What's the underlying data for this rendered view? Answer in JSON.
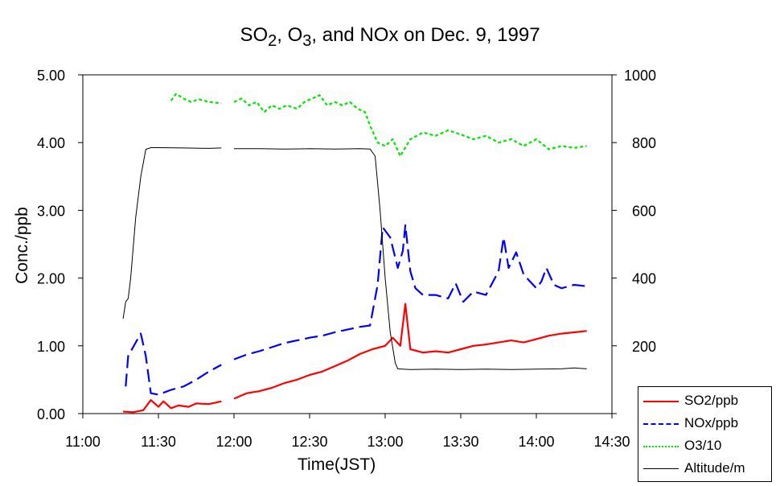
{
  "title_parts": {
    "a": "SO",
    "a_sub": "2",
    "b": ", O",
    "b_sub": "3",
    "c": ", and NOx on Dec. 9, 1997"
  },
  "chart_data": {
    "type": "line",
    "title": "SO2, O3, and NOx on Dec. 9, 1997",
    "xlabel": "Time(JST)",
    "ylabel": "Conc./ppb",
    "x_ticks": [
      "11:00",
      "11:30",
      "12:00",
      "12:30",
      "13:00",
      "13:30",
      "14:00",
      "14:30"
    ],
    "xlim": [
      "11:00",
      "14:30"
    ],
    "y_left_ticks": [
      "0.00",
      "1.00",
      "2.00",
      "3.00",
      "4.00",
      "5.00"
    ],
    "ylim_left": [
      0,
      5
    ],
    "y_right_ticks": [
      "0",
      "200",
      "400",
      "600",
      "800",
      "1000"
    ],
    "ylim_right": [
      0,
      1000
    ],
    "legend_position": "bottom-right",
    "series": [
      {
        "name": "SO2/ppb",
        "color": "#ff0000",
        "axis": "left",
        "style": "solid",
        "points": [
          [
            "11:16",
            0.03
          ],
          [
            "11:20",
            0.02
          ],
          [
            "11:24",
            0.05
          ],
          [
            "11:27",
            0.2
          ],
          [
            "11:30",
            0.1
          ],
          [
            "11:32",
            0.18
          ],
          [
            "11:35",
            0.08
          ],
          [
            "11:38",
            0.12
          ],
          [
            "11:42",
            0.1
          ],
          [
            "11:45",
            0.15
          ],
          [
            "11:50",
            0.14
          ],
          [
            "11:55",
            0.18
          ],
          null,
          [
            "12:00",
            0.22
          ],
          [
            "12:05",
            0.3
          ],
          [
            "12:10",
            0.33
          ],
          [
            "12:15",
            0.38
          ],
          [
            "12:20",
            0.45
          ],
          [
            "12:25",
            0.5
          ],
          [
            "12:30",
            0.57
          ],
          [
            "12:35",
            0.62
          ],
          [
            "12:40",
            0.7
          ],
          [
            "12:45",
            0.78
          ],
          [
            "12:50",
            0.88
          ],
          [
            "12:55",
            0.95
          ],
          [
            "13:00",
            1.0
          ],
          [
            "13:03",
            1.12
          ],
          [
            "13:06",
            1.0
          ],
          [
            "13:08",
            1.62
          ],
          [
            "13:10",
            0.95
          ],
          [
            "13:15",
            0.9
          ],
          [
            "13:20",
            0.92
          ],
          [
            "13:25",
            0.9
          ],
          [
            "13:30",
            0.95
          ],
          [
            "13:35",
            1.0
          ],
          [
            "13:40",
            1.02
          ],
          [
            "13:45",
            1.05
          ],
          [
            "13:50",
            1.08
          ],
          [
            "13:55",
            1.05
          ],
          [
            "14:00",
            1.1
          ],
          [
            "14:05",
            1.15
          ],
          [
            "14:10",
            1.18
          ],
          [
            "14:15",
            1.2
          ],
          [
            "14:20",
            1.22
          ]
        ]
      },
      {
        "name": "NOx/ppb",
        "color": "#0000ff",
        "axis": "left",
        "style": "dashed",
        "points": [
          [
            "11:17",
            0.4
          ],
          [
            "11:18",
            0.85
          ],
          [
            "11:21",
            1.05
          ],
          [
            "11:23",
            1.18
          ],
          [
            "11:25",
            0.85
          ],
          [
            "11:27",
            0.3
          ],
          [
            "11:30",
            0.28
          ],
          [
            "11:35",
            0.35
          ],
          [
            "11:40",
            0.4
          ],
          [
            "11:45",
            0.5
          ],
          [
            "11:50",
            0.62
          ],
          [
            "11:55",
            0.72
          ],
          null,
          [
            "12:00",
            0.8
          ],
          [
            "12:05",
            0.87
          ],
          [
            "12:10",
            0.92
          ],
          [
            "12:15",
            0.98
          ],
          [
            "12:20",
            1.04
          ],
          [
            "12:25",
            1.08
          ],
          [
            "12:30",
            1.12
          ],
          [
            "12:35",
            1.15
          ],
          [
            "12:40",
            1.2
          ],
          [
            "12:45",
            1.24
          ],
          [
            "12:50",
            1.28
          ],
          [
            "12:54",
            1.3
          ],
          [
            "12:57",
            1.9
          ],
          [
            "12:59",
            2.75
          ],
          [
            "13:02",
            2.6
          ],
          [
            "13:05",
            2.15
          ],
          [
            "13:07",
            2.4
          ],
          [
            "13:08",
            2.78
          ],
          [
            "13:10",
            2.1
          ],
          [
            "13:12",
            1.85
          ],
          [
            "13:15",
            1.75
          ],
          [
            "13:20",
            1.75
          ],
          [
            "13:25",
            1.7
          ],
          [
            "13:28",
            1.92
          ],
          [
            "13:31",
            1.65
          ],
          [
            "13:35",
            1.8
          ],
          [
            "13:40",
            1.75
          ],
          [
            "13:45",
            2.1
          ],
          [
            "13:47",
            2.6
          ],
          [
            "13:49",
            2.15
          ],
          [
            "13:52",
            2.38
          ],
          [
            "13:55",
            2.05
          ],
          [
            "14:00",
            1.85
          ],
          [
            "14:02",
            1.95
          ],
          [
            "14:04",
            2.15
          ],
          [
            "14:07",
            1.9
          ],
          [
            "14:10",
            1.85
          ],
          [
            "14:15",
            1.9
          ],
          [
            "14:20",
            1.88
          ]
        ]
      },
      {
        "name": "O3/10",
        "color": "#00e600",
        "axis": "left",
        "style": "dotted",
        "points": [
          [
            "11:35",
            4.62
          ],
          [
            "11:37",
            4.72
          ],
          [
            "11:40",
            4.65
          ],
          [
            "11:43",
            4.6
          ],
          [
            "11:46",
            4.64
          ],
          [
            "11:50",
            4.6
          ],
          [
            "11:55",
            4.58
          ],
          null,
          [
            "12:00",
            4.6
          ],
          [
            "12:03",
            4.65
          ],
          [
            "12:06",
            4.55
          ],
          [
            "12:09",
            4.6
          ],
          [
            "12:12",
            4.45
          ],
          [
            "12:15",
            4.55
          ],
          [
            "12:18",
            4.5
          ],
          [
            "12:21",
            4.55
          ],
          [
            "12:25",
            4.5
          ],
          [
            "12:28",
            4.6
          ],
          [
            "12:31",
            4.65
          ],
          [
            "12:34",
            4.7
          ],
          [
            "12:37",
            4.55
          ],
          [
            "12:40",
            4.6
          ],
          [
            "12:43",
            4.55
          ],
          [
            "12:46",
            4.6
          ],
          [
            "12:49",
            4.5
          ],
          [
            "12:52",
            4.45
          ],
          [
            "12:54",
            4.25
          ],
          [
            "12:57",
            4.0
          ],
          [
            "13:00",
            3.95
          ],
          [
            "13:03",
            4.05
          ],
          [
            "13:06",
            3.8
          ],
          [
            "13:10",
            4.05
          ],
          [
            "13:15",
            4.15
          ],
          [
            "13:20",
            4.1
          ],
          [
            "13:25",
            4.18
          ],
          [
            "13:30",
            4.12
          ],
          [
            "13:35",
            4.05
          ],
          [
            "13:40",
            4.1
          ],
          [
            "13:45",
            4.0
          ],
          [
            "13:50",
            4.05
          ],
          [
            "13:55",
            3.95
          ],
          [
            "14:00",
            4.05
          ],
          [
            "14:05",
            3.9
          ],
          [
            "14:10",
            3.95
          ],
          [
            "14:15",
            3.92
          ],
          [
            "14:20",
            3.95
          ]
        ]
      },
      {
        "name": "Altitude/m",
        "color": "#000000",
        "axis": "right",
        "style": "solid",
        "points": [
          [
            "11:16",
            280
          ],
          [
            "11:17",
            330
          ],
          [
            "11:18",
            340
          ],
          [
            "11:19",
            400
          ],
          [
            "11:21",
            580
          ],
          [
            "11:23",
            700
          ],
          [
            "11:25",
            780
          ],
          [
            "11:27",
            785
          ],
          [
            "11:30",
            785
          ],
          [
            "11:40",
            784
          ],
          [
            "11:50",
            783
          ],
          [
            "11:55",
            784
          ],
          null,
          [
            "12:00",
            782
          ],
          [
            "12:10",
            782
          ],
          [
            "12:20",
            781
          ],
          [
            "12:30",
            782
          ],
          [
            "12:40",
            781
          ],
          [
            "12:50",
            782
          ],
          [
            "12:54",
            781
          ],
          [
            "12:56",
            760
          ],
          [
            "12:58",
            600
          ],
          [
            "13:00",
            400
          ],
          [
            "13:02",
            240
          ],
          [
            "13:04",
            150
          ],
          [
            "13:05",
            132
          ],
          [
            "13:10",
            130
          ],
          [
            "13:20",
            131
          ],
          [
            "13:30",
            130
          ],
          [
            "13:40",
            131
          ],
          [
            "13:50",
            130
          ],
          [
            "14:00",
            131
          ],
          [
            "14:10",
            132
          ],
          [
            "14:15",
            135
          ],
          [
            "14:20",
            132
          ]
        ]
      }
    ]
  }
}
